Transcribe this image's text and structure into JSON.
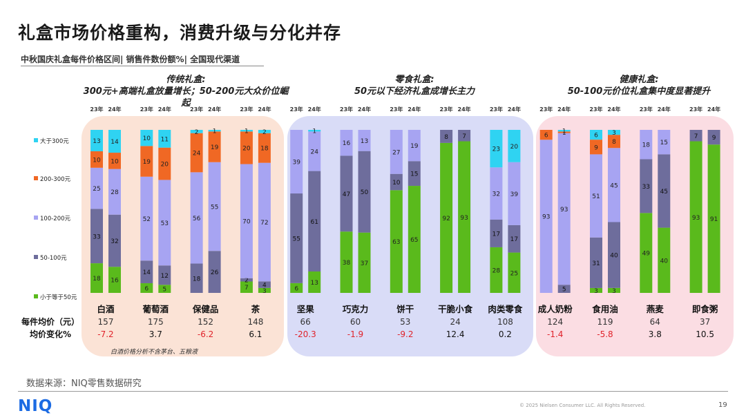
{
  "header": {
    "title": "礼盒市场价格重构，消费升级与分化并存",
    "subtitle": "中秋国庆礼盒每件价格区间| 销售件数份额%| 全国现代渠道"
  },
  "groups": [
    {
      "title": "传统礼盒:",
      "desc": "300元+高端礼盒放量增长；50-200元大众价位崛起",
      "color": "#fbe3d6"
    },
    {
      "title": "零食礼盒:",
      "desc": "50元以下经济礼盒成增长主力",
      "color": "#d9dcf7"
    },
    {
      "title": "健康礼盒:",
      "desc": "50-100元价位礼盒集中度显著提升",
      "color": "#fbdde3"
    }
  ],
  "labels": {
    "avg_price": "每件均价（元）",
    "change": "均价变化%",
    "note": "白酒价格分析不含茅台、五粮液"
  },
  "footer": {
    "source": "数据来源：NIQ零售数据研究",
    "logo": "NIQ",
    "copyright": "© 2025 Nielsen Consumer LLC. All Rights Reserved.",
    "page": "19"
  },
  "chart_data": {
    "type": "bar",
    "stacked": true,
    "percent": true,
    "years": [
      "23年",
      "24年"
    ],
    "legend": [
      "大于300元",
      "200-300元",
      "100-200元",
      "50-100元",
      "小于等于50元"
    ],
    "colors": [
      "#2fd3f2",
      "#f06824",
      "#a7a4f2",
      "#6e6d9c",
      "#5aba1c"
    ],
    "categories": [
      {
        "name": "白酒",
        "y23": [
          18,
          33,
          25,
          10,
          13
        ],
        "y24": [
          16,
          32,
          28,
          10,
          14
        ],
        "avg": "157",
        "chg": "-7.2"
      },
      {
        "name": "葡萄酒",
        "y23": [
          6,
          14,
          52,
          19,
          10
        ],
        "y24": [
          5,
          12,
          53,
          20,
          11
        ],
        "avg": "175",
        "chg": "3.7"
      },
      {
        "name": "保健品",
        "y23": [
          0,
          18,
          56,
          24,
          2
        ],
        "y24": [
          0,
          26,
          55,
          19,
          1
        ],
        "avg": "152",
        "chg": "-6.2"
      },
      {
        "name": "茶",
        "y23": [
          7,
          2,
          70,
          20,
          1
        ],
        "y24": [
          3,
          4,
          72,
          18,
          2
        ],
        "avg": "148",
        "chg": "6.1"
      },
      {
        "name": "坚果",
        "y23": [
          6,
          55,
          39,
          0,
          0
        ],
        "y24": [
          13,
          61,
          24,
          0,
          1
        ],
        "avg": "66",
        "chg": "-20.3"
      },
      {
        "name": "巧克力",
        "y23": [
          38,
          47,
          16,
          0,
          0
        ],
        "y24": [
          37,
          50,
          13,
          0,
          0
        ],
        "avg": "60",
        "chg": "-1.9"
      },
      {
        "name": "饼干",
        "y23": [
          63,
          10,
          27,
          0,
          0
        ],
        "y24": [
          65,
          15,
          19,
          0,
          0
        ],
        "avg": "53",
        "chg": "-9.2"
      },
      {
        "name": "干脆小食",
        "y23": [
          92,
          8,
          0,
          0,
          0
        ],
        "y24": [
          93,
          7,
          0,
          0,
          0
        ],
        "avg": "24",
        "chg": "12.4"
      },
      {
        "name": "肉类零食",
        "y23": [
          28,
          17,
          32,
          0,
          23
        ],
        "y24": [
          25,
          17,
          39,
          0,
          20
        ],
        "avg": "108",
        "chg": "0.2"
      },
      {
        "name": "成人奶粉",
        "y23": [
          0,
          0,
          93,
          6,
          0
        ],
        "y24": [
          0,
          5,
          93,
          1,
          1
        ],
        "avg": "124",
        "chg": "-1.4"
      },
      {
        "name": "食用油",
        "y23": [
          3,
          31,
          51,
          9,
          6
        ],
        "y24": [
          3,
          40,
          45,
          8,
          3
        ],
        "avg": "119",
        "chg": "-5.8"
      },
      {
        "name": "燕麦",
        "y23": [
          49,
          33,
          18,
          0,
          0
        ],
        "y24": [
          40,
          45,
          15,
          0,
          0
        ],
        "avg": "64",
        "chg": "3.8"
      },
      {
        "name": "即食粥",
        "y23": [
          93,
          7,
          0,
          0,
          0
        ],
        "y24": [
          91,
          9,
          0,
          0,
          0
        ],
        "avg": "37",
        "chg": "10.5"
      }
    ]
  }
}
